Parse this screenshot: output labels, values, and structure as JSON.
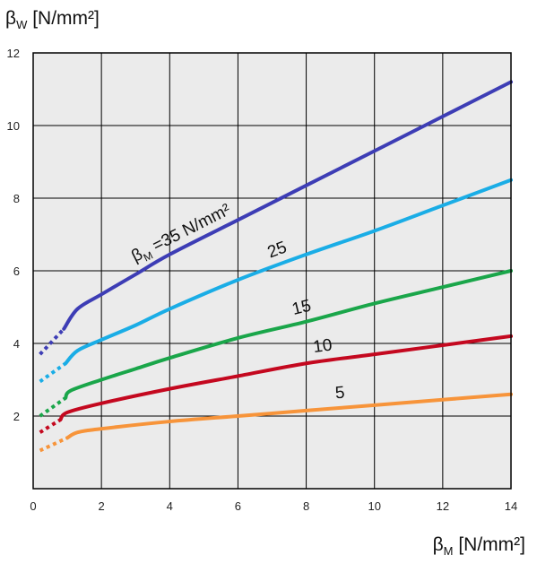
{
  "chart_data": {
    "type": "line",
    "y_axis_title": {
      "symbol": "β",
      "subscript": "W",
      "unit": " [N/mm²]"
    },
    "x_axis_title": {
      "symbol": "β",
      "subscript": "M",
      "unit": " [N/mm²]"
    },
    "xlim": [
      0,
      14
    ],
    "ylim": [
      0,
      12
    ],
    "x_ticks": [
      0,
      2,
      4,
      6,
      8,
      10,
      12,
      14
    ],
    "y_ticks": [
      2,
      4,
      6,
      8,
      10,
      12
    ],
    "grid": true,
    "plot_background": "#ebebeb",
    "series": [
      {
        "name": "βM =35 N/mm²",
        "label": {
          "symbol": "β",
          "subscript": "M",
          "text": " =35 N/mm²",
          "at_x": 4.4
        },
        "color": "#3d3db5",
        "dashed": [
          [
            0.2,
            3.7
          ],
          [
            0.9,
            4.4
          ]
        ],
        "solid": [
          [
            0.9,
            4.4
          ],
          [
            1.3,
            4.95
          ],
          [
            2,
            5.35
          ],
          [
            3,
            5.9
          ],
          [
            4,
            6.45
          ],
          [
            6,
            7.4
          ],
          [
            8,
            8.35
          ],
          [
            10,
            9.3
          ],
          [
            12,
            10.25
          ],
          [
            14,
            11.2
          ]
        ]
      },
      {
        "name": "25",
        "label": {
          "text": "25",
          "at_x": 7.2
        },
        "color": "#1aade6",
        "dashed": [
          [
            0.2,
            2.95
          ],
          [
            0.95,
            3.45
          ]
        ],
        "solid": [
          [
            0.95,
            3.45
          ],
          [
            1.3,
            3.8
          ],
          [
            2,
            4.1
          ],
          [
            3,
            4.5
          ],
          [
            4,
            4.95
          ],
          [
            6,
            5.75
          ],
          [
            8,
            6.45
          ],
          [
            10,
            7.1
          ],
          [
            12,
            7.8
          ],
          [
            14,
            8.5
          ]
        ]
      },
      {
        "name": "15",
        "label": {
          "text": "15",
          "at_x": 7.9
        },
        "color": "#1aa64a",
        "dashed": [
          [
            0.2,
            2.0
          ],
          [
            0.95,
            2.5
          ]
        ],
        "solid": [
          [
            0.95,
            2.5
          ],
          [
            1.1,
            2.7
          ],
          [
            2,
            3.0
          ],
          [
            3,
            3.3
          ],
          [
            4,
            3.6
          ],
          [
            6,
            4.15
          ],
          [
            8,
            4.6
          ],
          [
            10,
            5.1
          ],
          [
            12,
            5.55
          ],
          [
            14,
            6.0
          ]
        ]
      },
      {
        "name": "10",
        "label": {
          "text": "10",
          "at_x": 8.5
        },
        "color": "#c4081f",
        "dashed": [
          [
            0.2,
            1.55
          ],
          [
            0.8,
            1.9
          ]
        ],
        "solid": [
          [
            0.8,
            1.9
          ],
          [
            1,
            2.1
          ],
          [
            2,
            2.35
          ],
          [
            4,
            2.75
          ],
          [
            6,
            3.1
          ],
          [
            8,
            3.45
          ],
          [
            10,
            3.7
          ],
          [
            12,
            3.95
          ],
          [
            14,
            4.2
          ]
        ]
      },
      {
        "name": "5",
        "label": {
          "text": "5",
          "at_x": 9.0
        },
        "color": "#f7943a",
        "dashed": [
          [
            0.2,
            1.05
          ],
          [
            1.0,
            1.4
          ]
        ],
        "solid": [
          [
            1.0,
            1.4
          ],
          [
            1.3,
            1.55
          ],
          [
            2,
            1.65
          ],
          [
            4,
            1.85
          ],
          [
            6,
            2.0
          ],
          [
            8,
            2.15
          ],
          [
            10,
            2.3
          ],
          [
            12,
            2.45
          ],
          [
            14,
            2.6
          ]
        ]
      }
    ]
  }
}
